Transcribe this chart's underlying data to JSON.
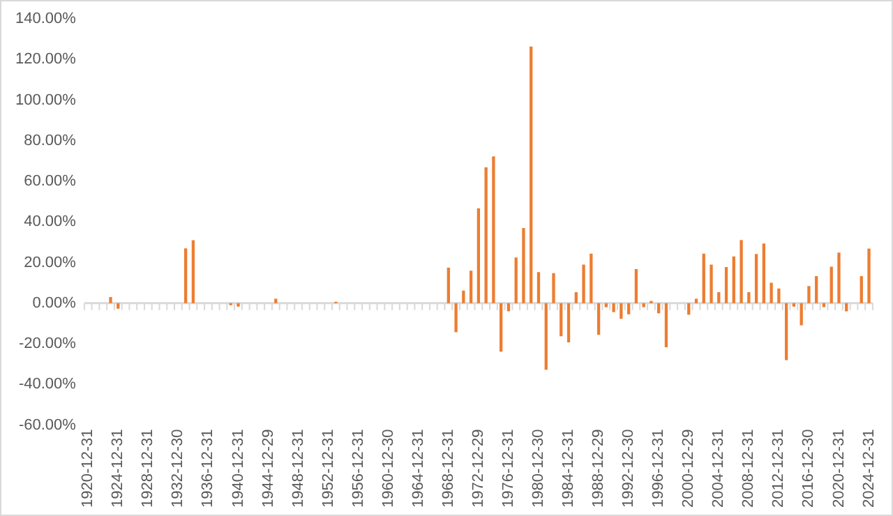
{
  "chart_data": {
    "type": "bar",
    "categories": [
      "1920-12-31",
      null,
      null,
      null,
      "1924-12-31",
      null,
      null,
      null,
      "1928-12-31",
      null,
      null,
      null,
      "1932-12-30",
      null,
      null,
      null,
      "1936-12-31",
      null,
      null,
      null,
      "1940-12-31",
      null,
      null,
      null,
      "1944-12-29",
      null,
      null,
      null,
      "1948-12-31",
      null,
      null,
      null,
      "1952-12-31",
      null,
      null,
      null,
      "1956-12-31",
      null,
      null,
      null,
      "1960-12-30",
      null,
      null,
      null,
      "1964-12-31",
      null,
      null,
      null,
      "1968-12-31",
      null,
      null,
      null,
      "1972-12-29",
      null,
      null,
      null,
      "1976-12-31",
      null,
      null,
      null,
      "1980-12-30",
      null,
      null,
      null,
      "1984-12-31",
      null,
      null,
      null,
      "1988-12-29",
      null,
      null,
      null,
      "1992-12-30",
      null,
      null,
      null,
      "1996-12-31",
      null,
      null,
      null,
      "2000-12-29",
      null,
      null,
      null,
      "2004-12-31",
      null,
      null,
      null,
      "2008-12-31",
      null,
      null,
      null,
      "2012-12-31",
      null,
      null,
      null,
      "2016-12-30",
      null,
      null,
      null,
      "2020-12-31",
      null,
      null,
      null,
      "2024-12-31"
    ],
    "values": [
      0,
      0,
      0,
      3,
      -2.7,
      0,
      0,
      0,
      0,
      0,
      0,
      0,
      0,
      27,
      31,
      0,
      0,
      0,
      0,
      -1,
      -1.7,
      0,
      0,
      0,
      0,
      2.2,
      0,
      0,
      0,
      0,
      0,
      0,
      0,
      0.7,
      0,
      0,
      0,
      0,
      0,
      0,
      0,
      0,
      0,
      0,
      0,
      0,
      0,
      0,
      17.5,
      -14.3,
      6.2,
      16,
      46.7,
      66.9,
      72.3,
      -23.9,
      -4,
      22.5,
      37,
      126.4,
      15.3,
      -32.8,
      14.8,
      -16.3,
      -19.3,
      5.4,
      19,
      24.4,
      -15.6,
      -2,
      -4.4,
      -7.7,
      -5.5,
      16.8,
      -2,
      1.1,
      -5,
      -21.7,
      0,
      0,
      -5.7,
      2.2,
      24.4,
      19,
      5.4,
      17.8,
      23,
      31.1,
      5.4,
      24.2,
      29.4,
      10.1,
      7.2,
      -28.1,
      -1.7,
      -10.9,
      8.4,
      13.3,
      -2,
      18,
      24.9,
      -4,
      0,
      13.3,
      26.9
    ],
    "color": "#ed7d31",
    "ylim": [
      -60,
      140
    ],
    "yticks": [
      {
        "value": -60,
        "label": "-60.00%"
      },
      {
        "value": -40,
        "label": "-40.00%"
      },
      {
        "value": -20,
        "label": "-20.00%"
      },
      {
        "value": 0,
        "label": "0.00%"
      },
      {
        "value": 20,
        "label": "20.00%"
      },
      {
        "value": 40,
        "label": "40.00%"
      },
      {
        "value": 60,
        "label": "60.00%"
      },
      {
        "value": 80,
        "label": "80.00%"
      },
      {
        "value": 100,
        "label": "100.00%"
      },
      {
        "value": 120,
        "label": "120.00%"
      },
      {
        "value": 140,
        "label": "140.00%"
      }
    ],
    "legend": false
  }
}
